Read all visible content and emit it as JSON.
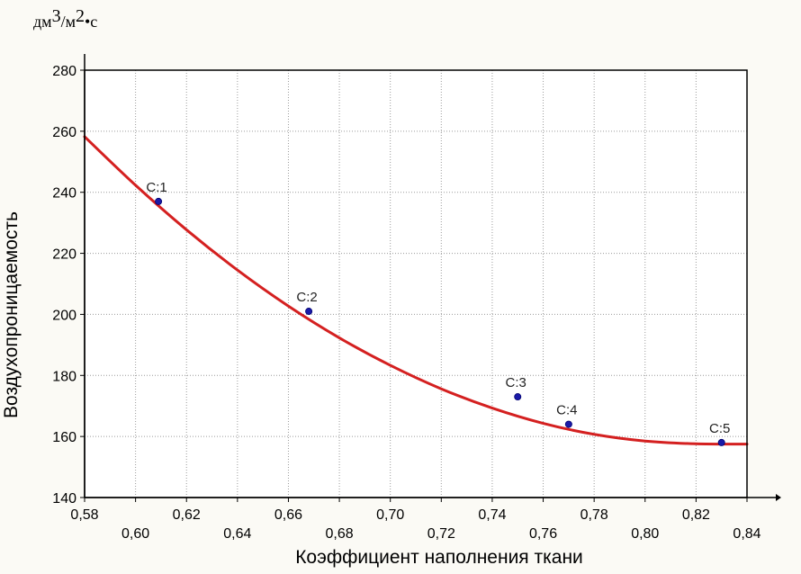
{
  "chart_data": {
    "type": "scatter",
    "unit_label": "дм3/м2•с",
    "unit_label_parts": {
      "base1": "дм",
      "sup1": "3",
      "mid": "/м",
      "sup2": "2",
      "tail": "•с"
    },
    "xlabel": "Коэффициент наполнения ткани",
    "ylabel": "Воздухопроницаемость",
    "xlim": [
      0.58,
      0.84
    ],
    "ylim": [
      140,
      280
    ],
    "x_ticks_row1": [
      "0,58",
      "0,62",
      "0,66",
      "0,70",
      "0,74",
      "0,78",
      "0,82"
    ],
    "x_ticks_row1_values": [
      0.58,
      0.62,
      0.66,
      0.7,
      0.74,
      0.78,
      0.82
    ],
    "x_ticks_row2": [
      "0,60",
      "0,64",
      "0,68",
      "0,72",
      "0,76",
      "0,80",
      "0,84"
    ],
    "x_ticks_row2_values": [
      0.6,
      0.64,
      0.68,
      0.72,
      0.76,
      0.8,
      0.84
    ],
    "y_ticks": [
      "140",
      "160",
      "180",
      "200",
      "220",
      "240",
      "260",
      "280"
    ],
    "y_ticks_values": [
      140,
      160,
      180,
      200,
      220,
      240,
      260,
      280
    ],
    "grid": true,
    "points": [
      {
        "label": "C:1",
        "x": 0.609,
        "y": 237
      },
      {
        "label": "C:2",
        "x": 0.668,
        "y": 201
      },
      {
        "label": "C:3",
        "x": 0.75,
        "y": 173
      },
      {
        "label": "C:4",
        "x": 0.77,
        "y": 164
      },
      {
        "label": "C:5",
        "x": 0.83,
        "y": 158
      }
    ],
    "fit_curve": {
      "x": [
        0.58,
        0.6,
        0.62,
        0.64,
        0.66,
        0.68,
        0.7,
        0.72,
        0.74,
        0.76,
        0.78,
        0.8,
        0.82,
        0.84
      ],
      "y": [
        258.2,
        242.3,
        227.7,
        214.5,
        202.7,
        192.3,
        183.3,
        175.6,
        169.3,
        164.3,
        160.7,
        158.5,
        157.6,
        157.5
      ]
    },
    "colors": {
      "curve": "#d42020",
      "points": "#1a1aa8",
      "grid": "#9a9a9a",
      "axis": "#000000",
      "plot_bg": "#ffffff",
      "page_bg": "#fbfaf5"
    }
  }
}
